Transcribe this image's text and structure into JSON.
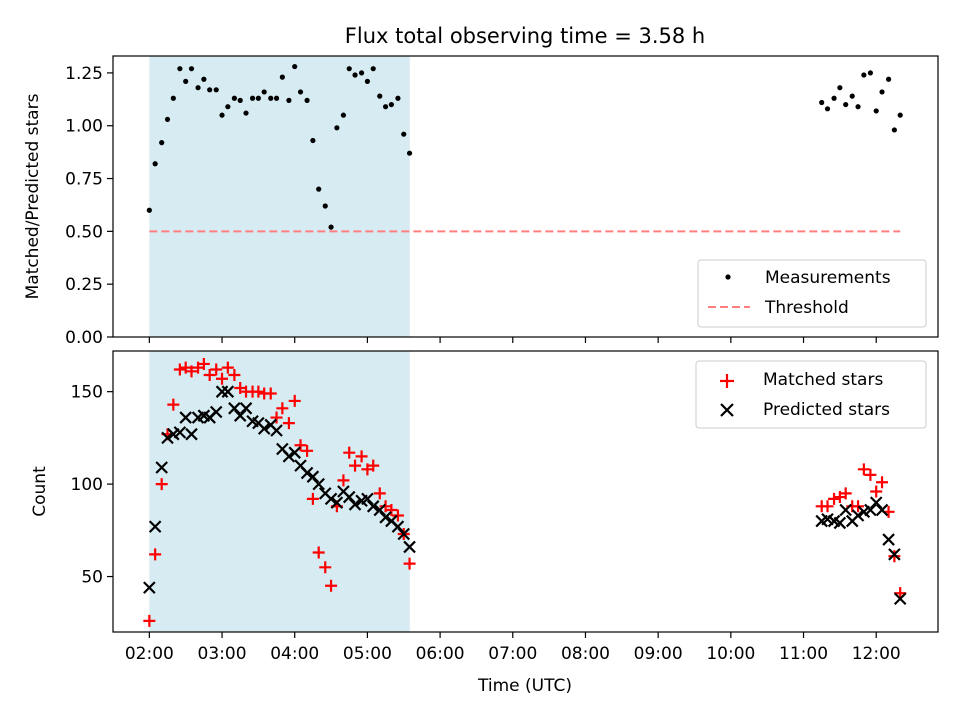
{
  "figure": {
    "title": "Flux total observing time = 3.58 h",
    "xlabel": "Time (UTC)",
    "x_ticks": [
      "02:00",
      "03:00",
      "04:00",
      "05:00",
      "06:00",
      "07:00",
      "08:00",
      "09:00",
      "10:00",
      "11:00",
      "12:00"
    ],
    "shaded_region": {
      "x_start": "02:00",
      "x_end": "05:35",
      "color": "#add8e6"
    }
  },
  "chart_data": [
    {
      "type": "scatter",
      "ylabel": "Matched/Predicted stars",
      "x_unit": "hours UTC",
      "xlim": [
        1.5,
        12.85
      ],
      "ylim": [
        0.0,
        1.33
      ],
      "y_ticks": [
        "0.00",
        "0.25",
        "0.50",
        "0.75",
        "1.00",
        "1.25"
      ],
      "legend_position": "lower right",
      "series": [
        {
          "name": "Measurements",
          "marker": "dot",
          "color": "#000000",
          "points": [
            [
              2.0,
              0.6
            ],
            [
              2.08,
              0.82
            ],
            [
              2.17,
              0.92
            ],
            [
              2.25,
              1.03
            ],
            [
              2.33,
              1.13
            ],
            [
              2.42,
              1.27
            ],
            [
              2.5,
              1.21
            ],
            [
              2.58,
              1.27
            ],
            [
              2.67,
              1.18
            ],
            [
              2.75,
              1.22
            ],
            [
              2.83,
              1.17
            ],
            [
              2.92,
              1.17
            ],
            [
              3.0,
              1.05
            ],
            [
              3.08,
              1.09
            ],
            [
              3.17,
              1.13
            ],
            [
              3.25,
              1.12
            ],
            [
              3.33,
              1.06
            ],
            [
              3.42,
              1.13
            ],
            [
              3.5,
              1.13
            ],
            [
              3.58,
              1.16
            ],
            [
              3.67,
              1.13
            ],
            [
              3.75,
              1.13
            ],
            [
              3.83,
              1.23
            ],
            [
              3.92,
              1.12
            ],
            [
              4.0,
              1.28
            ],
            [
              4.08,
              1.16
            ],
            [
              4.17,
              1.12
            ],
            [
              4.25,
              0.93
            ],
            [
              4.33,
              0.7
            ],
            [
              4.42,
              0.62
            ],
            [
              4.5,
              0.52
            ],
            [
              4.58,
              0.99
            ],
            [
              4.67,
              1.05
            ],
            [
              4.75,
              1.27
            ],
            [
              4.83,
              1.24
            ],
            [
              4.92,
              1.25
            ],
            [
              5.0,
              1.21
            ],
            [
              5.08,
              1.27
            ],
            [
              5.17,
              1.14
            ],
            [
              5.25,
              1.09
            ],
            [
              5.33,
              1.1
            ],
            [
              5.42,
              1.13
            ],
            [
              5.5,
              0.96
            ],
            [
              5.58,
              0.87
            ],
            [
              11.25,
              1.11
            ],
            [
              11.33,
              1.08
            ],
            [
              11.42,
              1.13
            ],
            [
              11.5,
              1.18
            ],
            [
              11.58,
              1.1
            ],
            [
              11.67,
              1.14
            ],
            [
              11.75,
              1.09
            ],
            [
              11.83,
              1.24
            ],
            [
              11.92,
              1.25
            ],
            [
              12.0,
              1.07
            ],
            [
              12.08,
              1.16
            ],
            [
              12.17,
              1.22
            ],
            [
              12.25,
              0.98
            ],
            [
              12.33,
              1.05
            ]
          ]
        },
        {
          "name": "Threshold",
          "style": "dashed",
          "color": "#ff7f7f",
          "points": [
            [
              2.0,
              0.5
            ],
            [
              12.33,
              0.5
            ]
          ]
        }
      ]
    },
    {
      "type": "scatter",
      "ylabel": "Count",
      "x_unit": "hours UTC",
      "xlim": [
        1.5,
        12.85
      ],
      "ylim": [
        20,
        172
      ],
      "y_ticks": [
        "50",
        "100",
        "150"
      ],
      "legend_position": "upper right",
      "series": [
        {
          "name": "Matched stars",
          "marker": "plus",
          "color": "#ff0000",
          "points": [
            [
              2.0,
              26
            ],
            [
              2.08,
              62
            ],
            [
              2.17,
              100
            ],
            [
              2.25,
              127
            ],
            [
              2.33,
              143
            ],
            [
              2.42,
              162
            ],
            [
              2.5,
              163
            ],
            [
              2.58,
              161
            ],
            [
              2.67,
              163
            ],
            [
              2.75,
              165
            ],
            [
              2.83,
              159
            ],
            [
              2.92,
              162
            ],
            [
              3.0,
              157
            ],
            [
              3.08,
              163
            ],
            [
              3.17,
              159
            ],
            [
              3.25,
              152
            ],
            [
              3.33,
              150
            ],
            [
              3.42,
              150
            ],
            [
              3.5,
              150
            ],
            [
              3.58,
              149
            ],
            [
              3.67,
              149
            ],
            [
              3.75,
              136
            ],
            [
              3.83,
              141
            ],
            [
              3.92,
              133
            ],
            [
              4.0,
              145
            ],
            [
              4.08,
              121
            ],
            [
              4.17,
              118
            ],
            [
              4.25,
              92
            ],
            [
              4.33,
              63
            ],
            [
              4.42,
              55
            ],
            [
              4.5,
              45
            ],
            [
              4.58,
              88
            ],
            [
              4.67,
              102
            ],
            [
              4.75,
              117
            ],
            [
              4.83,
              110
            ],
            [
              4.92,
              115
            ],
            [
              5.0,
              108
            ],
            [
              5.08,
              110
            ],
            [
              5.17,
              95
            ],
            [
              5.25,
              88
            ],
            [
              5.33,
              86
            ],
            [
              5.42,
              83
            ],
            [
              5.5,
              73
            ],
            [
              5.58,
              57
            ],
            [
              11.25,
              88
            ],
            [
              11.33,
              88
            ],
            [
              11.42,
              92
            ],
            [
              11.5,
              93
            ],
            [
              11.58,
              95
            ],
            [
              11.67,
              88
            ],
            [
              11.75,
              88
            ],
            [
              11.83,
              108
            ],
            [
              11.92,
              105
            ],
            [
              12.0,
              96
            ],
            [
              12.08,
              101
            ],
            [
              12.17,
              85
            ],
            [
              12.25,
              61
            ],
            [
              12.33,
              41
            ]
          ]
        },
        {
          "name": "Predicted stars",
          "marker": "x",
          "color": "#000000",
          "points": [
            [
              2.0,
              44
            ],
            [
              2.08,
              77
            ],
            [
              2.17,
              109
            ],
            [
              2.25,
              125
            ],
            [
              2.33,
              127
            ],
            [
              2.42,
              128
            ],
            [
              2.5,
              136
            ],
            [
              2.58,
              127
            ],
            [
              2.67,
              136
            ],
            [
              2.75,
              137
            ],
            [
              2.83,
              136
            ],
            [
              2.92,
              139
            ],
            [
              3.0,
              150
            ],
            [
              3.08,
              150
            ],
            [
              3.17,
              141
            ],
            [
              3.25,
              137
            ],
            [
              3.33,
              141
            ],
            [
              3.42,
              134
            ],
            [
              3.5,
              133
            ],
            [
              3.58,
              130
            ],
            [
              3.67,
              132
            ],
            [
              3.75,
              129
            ],
            [
              3.83,
              119
            ],
            [
              3.92,
              115
            ],
            [
              4.0,
              117
            ],
            [
              4.08,
              110
            ],
            [
              4.17,
              106
            ],
            [
              4.25,
              104
            ],
            [
              4.33,
              100
            ],
            [
              4.42,
              95
            ],
            [
              4.5,
              92
            ],
            [
              4.58,
              90
            ],
            [
              4.67,
              96
            ],
            [
              4.75,
              93
            ],
            [
              4.83,
              89
            ],
            [
              4.92,
              91
            ],
            [
              5.0,
              92
            ],
            [
              5.08,
              88
            ],
            [
              5.17,
              86
            ],
            [
              5.25,
              82
            ],
            [
              5.33,
              80
            ],
            [
              5.42,
              77
            ],
            [
              5.5,
              73
            ],
            [
              5.58,
              66
            ],
            [
              11.25,
              80
            ],
            [
              11.33,
              81
            ],
            [
              11.42,
              80
            ],
            [
              11.5,
              79
            ],
            [
              11.58,
              86
            ],
            [
              11.67,
              80
            ],
            [
              11.75,
              83
            ],
            [
              11.83,
              85
            ],
            [
              11.92,
              86
            ],
            [
              12.0,
              90
            ],
            [
              12.08,
              86
            ],
            [
              12.17,
              70
            ],
            [
              12.25,
              62
            ],
            [
              12.33,
              38
            ]
          ]
        }
      ]
    }
  ]
}
